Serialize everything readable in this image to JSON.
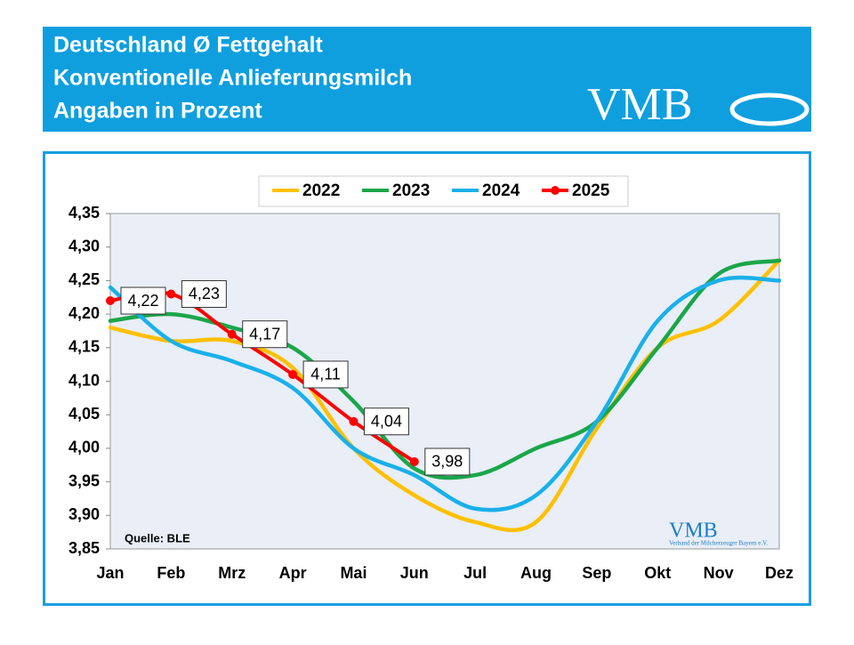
{
  "header": {
    "title_lines": [
      "Deutschland Ø Fettgehalt",
      "Konventionelle Anlieferungsmilch",
      "Angaben in Prozent"
    ],
    "logo": "VMB"
  },
  "chart_data": {
    "type": "line",
    "categories": [
      "Jan",
      "Feb",
      "Mrz",
      "Apr",
      "Mai",
      "Jun",
      "Jul",
      "Aug",
      "Sep",
      "Okt",
      "Nov",
      "Dez"
    ],
    "series": [
      {
        "name": "2022",
        "color": "#ffc000",
        "values": [
          4.18,
          4.16,
          4.16,
          4.12,
          4.0,
          3.93,
          3.89,
          3.89,
          4.03,
          4.15,
          4.19,
          4.28
        ]
      },
      {
        "name": "2023",
        "color": "#1aa64a",
        "values": [
          4.19,
          4.2,
          4.18,
          4.15,
          4.07,
          3.97,
          3.96,
          4.0,
          4.04,
          4.15,
          4.26,
          4.28
        ]
      },
      {
        "name": "2024",
        "color": "#1ab0ea",
        "values": [
          4.24,
          4.16,
          4.13,
          4.09,
          4.0,
          3.96,
          3.91,
          3.93,
          4.04,
          4.19,
          4.25,
          4.25
        ]
      },
      {
        "name": "2025",
        "color": "#ff0000",
        "marker": true,
        "values": [
          4.22,
          4.23,
          4.17,
          4.11,
          4.04,
          3.98,
          null,
          null,
          null,
          null,
          null,
          null
        ],
        "value_labels": [
          "4,22",
          "4,23",
          "4,17",
          "4,11",
          "4,04",
          "3,98",
          null,
          null,
          null,
          null,
          null,
          null
        ]
      }
    ],
    "ylim": [
      3.85,
      4.35
    ],
    "yticks": [
      {
        "value": 3.85,
        "label": "3,85"
      },
      {
        "value": 3.9,
        "label": "3,90"
      },
      {
        "value": 3.95,
        "label": "3,95"
      },
      {
        "value": 4.0,
        "label": "4,00"
      },
      {
        "value": 4.05,
        "label": "4,05"
      },
      {
        "value": 4.1,
        "label": "4,10"
      },
      {
        "value": 4.15,
        "label": "4,15"
      },
      {
        "value": 4.2,
        "label": "4,20"
      },
      {
        "value": 4.25,
        "label": "4,25"
      },
      {
        "value": 4.3,
        "label": "4,30"
      },
      {
        "value": 4.35,
        "label": "4,35"
      }
    ],
    "grid": false,
    "legend": "top",
    "source": "Quelle: BLE",
    "watermark": {
      "logo": "VMB",
      "text": "Verband der Milcherzeuger Bayern e.V."
    }
  }
}
